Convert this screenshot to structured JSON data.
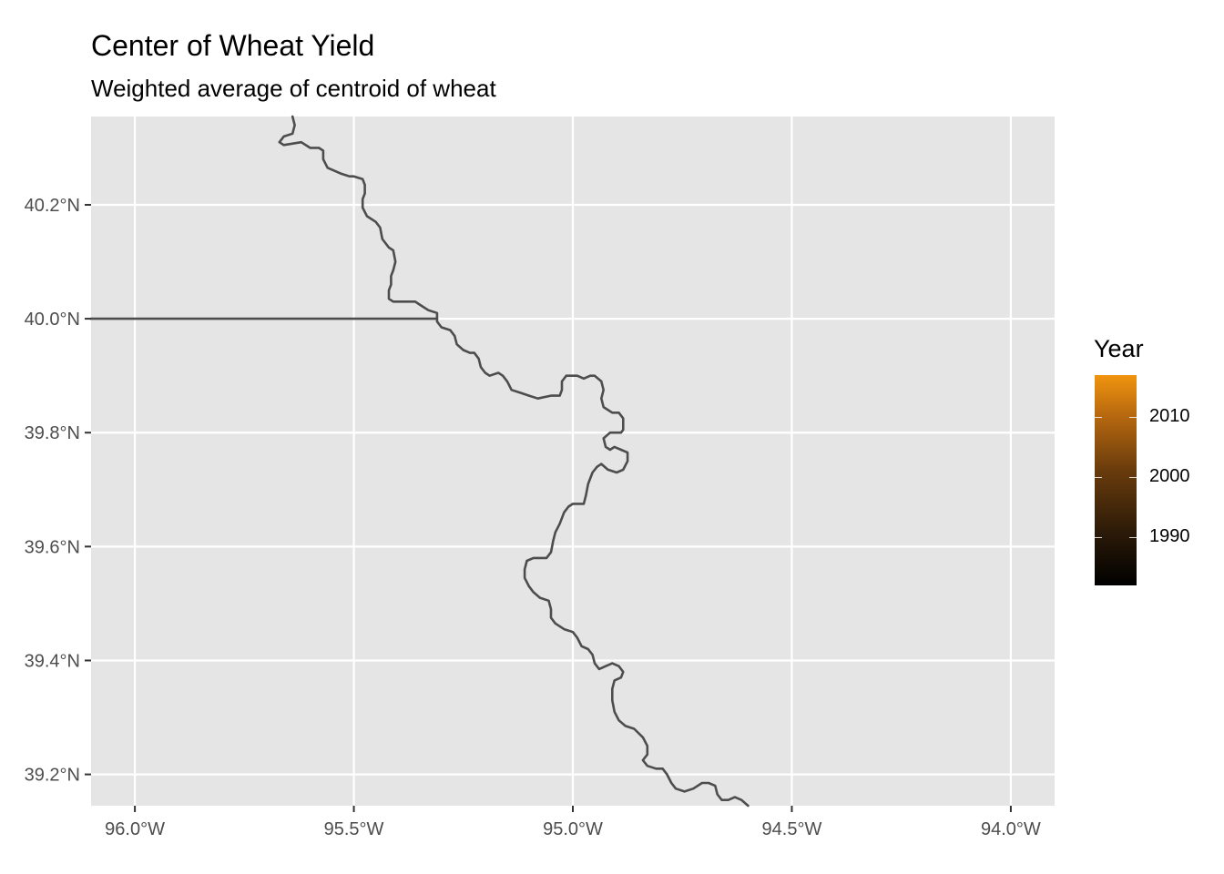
{
  "title": "Center of Wheat Yield",
  "subtitle": "Weighted average of centroid of wheat",
  "colors": {
    "panel": "#e5e5e5",
    "grid": "#ffffff",
    "boundary": "#4d4d4d",
    "legend_low": "#000000",
    "legend_high": "#f0940f"
  },
  "chart_data": {
    "type": "map",
    "xlim": [
      -96.1,
      -93.9
    ],
    "ylim": [
      39.145,
      40.355
    ],
    "x_ticks": [
      {
        "value": -96.0,
        "label": "96.0°W"
      },
      {
        "value": -95.5,
        "label": "95.5°W"
      },
      {
        "value": -95.0,
        "label": "95.0°W"
      },
      {
        "value": -94.5,
        "label": "94.5°W"
      },
      {
        "value": -94.0,
        "label": "94.0°W"
      }
    ],
    "y_ticks": [
      {
        "value": 39.2,
        "label": "39.2°N"
      },
      {
        "value": 39.4,
        "label": "39.4°N"
      },
      {
        "value": 39.6,
        "label": "39.6°N"
      },
      {
        "value": 39.8,
        "label": "39.8°N"
      },
      {
        "value": 40.0,
        "label": "40.0°N"
      },
      {
        "value": 40.2,
        "label": "40.2°N"
      }
    ],
    "grid": true,
    "boundaries": [
      {
        "points": [
          [
            -96.1,
            40.0
          ],
          [
            -96.0,
            40.0
          ],
          [
            -95.8,
            40.0
          ],
          [
            -95.5,
            40.0
          ],
          [
            -95.31,
            40.0
          ]
        ]
      },
      {
        "points": [
          [
            -95.64,
            40.355
          ],
          [
            -95.635,
            40.34
          ],
          [
            -95.64,
            40.325
          ],
          [
            -95.66,
            40.32
          ],
          [
            -95.67,
            40.31
          ],
          [
            -95.66,
            40.305
          ],
          [
            -95.62,
            40.31
          ],
          [
            -95.6,
            40.3
          ],
          [
            -95.58,
            40.3
          ],
          [
            -95.57,
            40.295
          ],
          [
            -95.57,
            40.28
          ],
          [
            -95.56,
            40.265
          ],
          [
            -95.545,
            40.26
          ],
          [
            -95.53,
            40.255
          ],
          [
            -95.51,
            40.25
          ],
          [
            -95.5,
            40.25
          ],
          [
            -95.48,
            40.245
          ],
          [
            -95.475,
            40.235
          ],
          [
            -95.475,
            40.22
          ],
          [
            -95.48,
            40.21
          ],
          [
            -95.48,
            40.195
          ],
          [
            -95.47,
            40.18
          ],
          [
            -95.45,
            40.17
          ],
          [
            -95.44,
            40.16
          ],
          [
            -95.435,
            40.14
          ],
          [
            -95.42,
            40.125
          ],
          [
            -95.41,
            40.12
          ],
          [
            -95.405,
            40.1
          ],
          [
            -95.41,
            40.085
          ],
          [
            -95.415,
            40.075
          ],
          [
            -95.415,
            40.06
          ],
          [
            -95.42,
            40.05
          ],
          [
            -95.42,
            40.035
          ],
          [
            -95.41,
            40.03
          ],
          [
            -95.38,
            40.03
          ],
          [
            -95.36,
            40.03
          ],
          [
            -95.35,
            40.025
          ],
          [
            -95.33,
            40.015
          ],
          [
            -95.31,
            40.01
          ],
          [
            -95.31,
            39.995
          ],
          [
            -95.3,
            39.985
          ],
          [
            -95.28,
            39.98
          ],
          [
            -95.27,
            39.97
          ],
          [
            -95.265,
            39.955
          ],
          [
            -95.25,
            39.945
          ],
          [
            -95.235,
            39.94
          ],
          [
            -95.225,
            39.94
          ],
          [
            -95.215,
            39.93
          ],
          [
            -95.21,
            39.915
          ],
          [
            -95.2,
            39.905
          ],
          [
            -95.19,
            39.9
          ],
          [
            -95.17,
            39.905
          ],
          [
            -95.16,
            39.9
          ],
          [
            -95.15,
            39.89
          ],
          [
            -95.14,
            39.875
          ],
          [
            -95.12,
            39.87
          ],
          [
            -95.1,
            39.865
          ],
          [
            -95.08,
            39.86
          ],
          [
            -95.05,
            39.865
          ],
          [
            -95.03,
            39.865
          ],
          [
            -95.025,
            39.875
          ],
          [
            -95.025,
            39.89
          ],
          [
            -95.015,
            39.9
          ],
          [
            -94.99,
            39.9
          ],
          [
            -94.975,
            39.895
          ],
          [
            -94.96,
            39.9
          ],
          [
            -94.95,
            39.9
          ],
          [
            -94.935,
            39.89
          ],
          [
            -94.93,
            39.875
          ],
          [
            -94.935,
            39.86
          ],
          [
            -94.93,
            39.845
          ],
          [
            -94.91,
            39.835
          ],
          [
            -94.895,
            39.835
          ],
          [
            -94.885,
            39.825
          ],
          [
            -94.885,
            39.805
          ],
          [
            -94.89,
            39.8
          ],
          [
            -94.915,
            39.8
          ],
          [
            -94.93,
            39.79
          ],
          [
            -94.925,
            39.775
          ],
          [
            -94.915,
            39.77
          ],
          [
            -94.905,
            39.775
          ],
          [
            -94.89,
            39.77
          ],
          [
            -94.875,
            39.765
          ],
          [
            -94.875,
            39.75
          ],
          [
            -94.885,
            39.735
          ],
          [
            -94.9,
            39.73
          ],
          [
            -94.92,
            39.735
          ],
          [
            -94.935,
            39.745
          ],
          [
            -94.945,
            39.74
          ],
          [
            -94.955,
            39.73
          ],
          [
            -94.965,
            39.71
          ],
          [
            -94.97,
            39.69
          ],
          [
            -94.975,
            39.675
          ],
          [
            -94.99,
            39.675
          ],
          [
            -95.0,
            39.675
          ],
          [
            -95.01,
            39.67
          ],
          [
            -95.02,
            39.66
          ],
          [
            -95.03,
            39.64
          ],
          [
            -95.04,
            39.625
          ],
          [
            -95.045,
            39.61
          ],
          [
            -95.05,
            39.59
          ],
          [
            -95.06,
            39.58
          ],
          [
            -95.075,
            39.58
          ],
          [
            -95.09,
            39.58
          ],
          [
            -95.105,
            39.575
          ],
          [
            -95.11,
            39.56
          ],
          [
            -95.11,
            39.545
          ],
          [
            -95.1,
            39.53
          ],
          [
            -95.09,
            39.52
          ],
          [
            -95.075,
            39.51
          ],
          [
            -95.055,
            39.505
          ],
          [
            -95.05,
            39.49
          ],
          [
            -95.05,
            39.475
          ],
          [
            -95.04,
            39.465
          ],
          [
            -95.02,
            39.455
          ],
          [
            -95.0,
            39.45
          ],
          [
            -94.99,
            39.44
          ],
          [
            -94.98,
            39.425
          ],
          [
            -94.965,
            39.42
          ],
          [
            -94.955,
            39.41
          ],
          [
            -94.95,
            39.395
          ],
          [
            -94.94,
            39.385
          ],
          [
            -94.925,
            39.39
          ],
          [
            -94.91,
            39.395
          ],
          [
            -94.895,
            39.39
          ],
          [
            -94.885,
            39.38
          ],
          [
            -94.89,
            39.37
          ],
          [
            -94.905,
            39.365
          ],
          [
            -94.91,
            39.35
          ],
          [
            -94.91,
            39.33
          ],
          [
            -94.905,
            39.31
          ],
          [
            -94.895,
            39.295
          ],
          [
            -94.88,
            39.285
          ],
          [
            -94.86,
            39.28
          ],
          [
            -94.84,
            39.265
          ],
          [
            -94.83,
            39.25
          ],
          [
            -94.83,
            39.235
          ],
          [
            -94.84,
            39.225
          ],
          [
            -94.83,
            39.215
          ],
          [
            -94.81,
            39.21
          ],
          [
            -94.795,
            39.21
          ],
          [
            -94.785,
            39.2
          ],
          [
            -94.775,
            39.185
          ],
          [
            -94.765,
            39.175
          ],
          [
            -94.745,
            39.17
          ],
          [
            -94.725,
            39.175
          ],
          [
            -94.705,
            39.185
          ],
          [
            -94.69,
            39.185
          ],
          [
            -94.675,
            39.18
          ],
          [
            -94.67,
            39.165
          ],
          [
            -94.66,
            39.155
          ],
          [
            -94.645,
            39.155
          ],
          [
            -94.63,
            39.16
          ],
          [
            -94.615,
            39.155
          ],
          [
            -94.6,
            39.145
          ]
        ]
      }
    ]
  },
  "legend": {
    "title": "Year",
    "min": 1982,
    "max": 2017,
    "labels": [
      {
        "value": 2010,
        "label": "2010"
      },
      {
        "value": 2000,
        "label": "2000"
      },
      {
        "value": 1990,
        "label": "1990"
      }
    ]
  }
}
